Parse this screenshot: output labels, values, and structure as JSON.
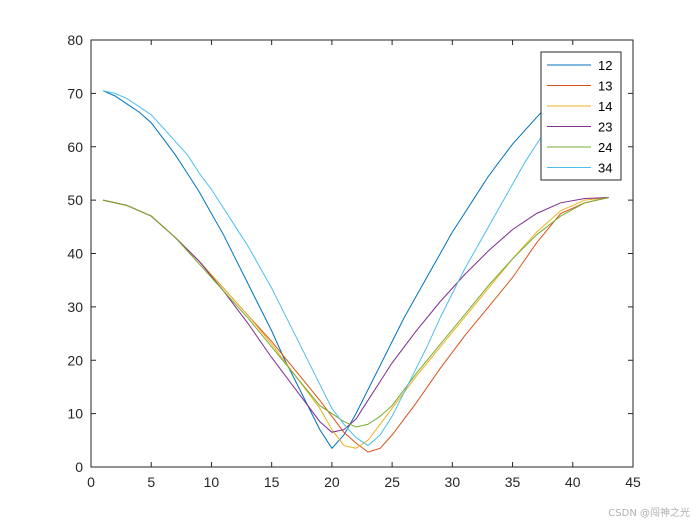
{
  "chart_data": {
    "type": "line",
    "xlim": [
      0,
      45
    ],
    "ylim": [
      0,
      80
    ],
    "x_ticks": [
      0,
      5,
      10,
      15,
      20,
      25,
      30,
      35,
      40,
      45
    ],
    "y_ticks": [
      0,
      10,
      20,
      30,
      40,
      50,
      60,
      70,
      80
    ],
    "grid": false,
    "legend_position": "top-right",
    "series": [
      {
        "name": "12",
        "color": "#0072BD",
        "x": [
          1,
          2,
          3,
          4,
          5,
          6,
          7,
          8,
          9,
          10,
          11,
          12,
          13,
          14,
          15,
          16,
          17,
          18,
          19,
          20,
          21,
          22,
          23,
          24,
          25,
          26,
          27,
          28,
          29,
          30,
          31,
          32,
          33,
          34,
          35,
          36,
          37,
          38,
          39,
          40
        ],
        "y": [
          70.5,
          69.5,
          68,
          66.5,
          64.5,
          61.5,
          58.5,
          55,
          51.5,
          47.5,
          43.5,
          39,
          34.5,
          30,
          25.5,
          20.5,
          16,
          11.5,
          7,
          3.5,
          6,
          10,
          14.5,
          19,
          23.5,
          28,
          32,
          36,
          40,
          44,
          47.5,
          51,
          54.5,
          57.5,
          60.5,
          63,
          65.5,
          68,
          69.5,
          70.5
        ]
      },
      {
        "name": "13",
        "color": "#D95319",
        "x": [
          1,
          3,
          5,
          7,
          9,
          11,
          13,
          15,
          17,
          19,
          20,
          21,
          22,
          23,
          24,
          25,
          27,
          29,
          31,
          33,
          35,
          37,
          39,
          41,
          43
        ],
        "y": [
          50,
          49,
          47,
          43,
          38.5,
          33.5,
          28.5,
          23.5,
          18,
          12.5,
          9.5,
          6.5,
          4.5,
          2.8,
          3.5,
          6,
          12,
          18.5,
          24.5,
          30,
          35.5,
          42,
          47.5,
          49.5,
          50.5
        ]
      },
      {
        "name": "14",
        "color": "#EDB120",
        "x": [
          1,
          3,
          5,
          7,
          9,
          11,
          13,
          15,
          17,
          19,
          20,
          21,
          22,
          23,
          24,
          25,
          27,
          29,
          31,
          33,
          35,
          37,
          39,
          41,
          43
        ],
        "y": [
          50,
          49,
          47,
          43,
          38.5,
          33.5,
          28.5,
          23,
          17,
          11,
          7,
          4,
          3.5,
          5,
          8,
          11,
          17,
          22.5,
          28,
          33.5,
          39,
          44,
          48,
          50,
          50.5
        ]
      },
      {
        "name": "23",
        "color": "#7E2F8E",
        "x": [
          1,
          3,
          5,
          7,
          9,
          11,
          13,
          15,
          17,
          19,
          20,
          21,
          22,
          23,
          25,
          27,
          29,
          31,
          33,
          35,
          37,
          39,
          41,
          43
        ],
        "y": [
          50,
          49,
          47,
          43,
          38.5,
          33,
          27,
          20.5,
          14.5,
          8.5,
          6.5,
          7,
          9,
          12.5,
          19.5,
          25.5,
          31,
          36,
          40.5,
          44.5,
          47.5,
          49.5,
          50.3,
          50.5
        ]
      },
      {
        "name": "24",
        "color": "#77AC30",
        "x": [
          1,
          3,
          5,
          7,
          9,
          11,
          13,
          15,
          17,
          19,
          21,
          22,
          23,
          24,
          25,
          27,
          29,
          31,
          33,
          35,
          37,
          39,
          41,
          43
        ],
        "y": [
          50,
          49,
          47,
          43,
          38,
          33,
          28,
          22.5,
          17,
          11.5,
          8.5,
          7.5,
          8,
          9.5,
          11.5,
          17.5,
          23,
          28.5,
          34,
          39,
          43.5,
          47,
          49.5,
          50.5
        ]
      },
      {
        "name": "34",
        "color": "#4DBEEE",
        "x": [
          1,
          2,
          3,
          4,
          5,
          6,
          7,
          8,
          9,
          10,
          11,
          12,
          13,
          14,
          15,
          16,
          17,
          18,
          19,
          20,
          21,
          22,
          23,
          24,
          25,
          26,
          27,
          28,
          29,
          30,
          31,
          32,
          33,
          34,
          35,
          36,
          37,
          38,
          39,
          40
        ],
        "y": [
          70.5,
          70,
          69,
          67.5,
          66,
          63.5,
          61,
          58.5,
          55,
          52,
          48.5,
          45,
          41.5,
          37.5,
          33.5,
          29,
          24.5,
          20,
          15.5,
          11,
          8,
          5.5,
          4,
          6,
          9.5,
          14,
          18.5,
          23,
          28,
          32.5,
          37,
          41,
          45,
          49,
          53,
          57,
          60.5,
          64,
          67,
          70.5
        ]
      }
    ]
  },
  "watermark": "CSDN @闯神之光"
}
